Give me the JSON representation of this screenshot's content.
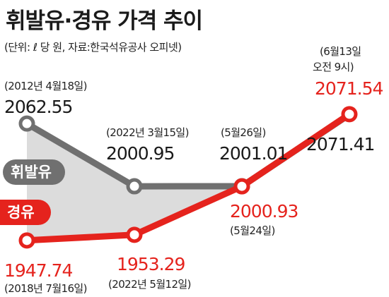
{
  "title": "휘발유·경유 가격 추이",
  "source": "(단위: ℓ 당 원, 자료:한국석유공사 오피넷)",
  "colors": {
    "gasoline": "#707070",
    "diesel": "#e5231d",
    "area": "#dcdcdc",
    "text": "#1a1a1a"
  },
  "chart_data": {
    "type": "line",
    "title": "휘발유·경유 가격 추이",
    "unit": "(단위: ℓ 당 원, 자료:한국석유공사 오피넷)",
    "grid": false,
    "legend": "inline-left",
    "series": [
      {
        "name": "휘발유",
        "color": "#707070",
        "points": [
          {
            "date": "(2012년 4월18일)",
            "value": "2062.55"
          },
          {
            "date": "(2022년 3월15일)",
            "value": "2000.95"
          },
          {
            "date": "(5월26일)",
            "value": "2001.01"
          },
          {
            "date": "",
            "value": "2071.41"
          }
        ]
      },
      {
        "name": "경유",
        "color": "#e5231d",
        "points": [
          {
            "date": "(2018년 7월16일)",
            "value": "1947.74"
          },
          {
            "date": "(2022년 5월12일)",
            "value": "1953.29"
          },
          {
            "date": "(5월24일)",
            "value": "2000.93"
          },
          {
            "date": "(6월13일|오전 9시)",
            "value": "2071.54"
          }
        ]
      }
    ]
  }
}
